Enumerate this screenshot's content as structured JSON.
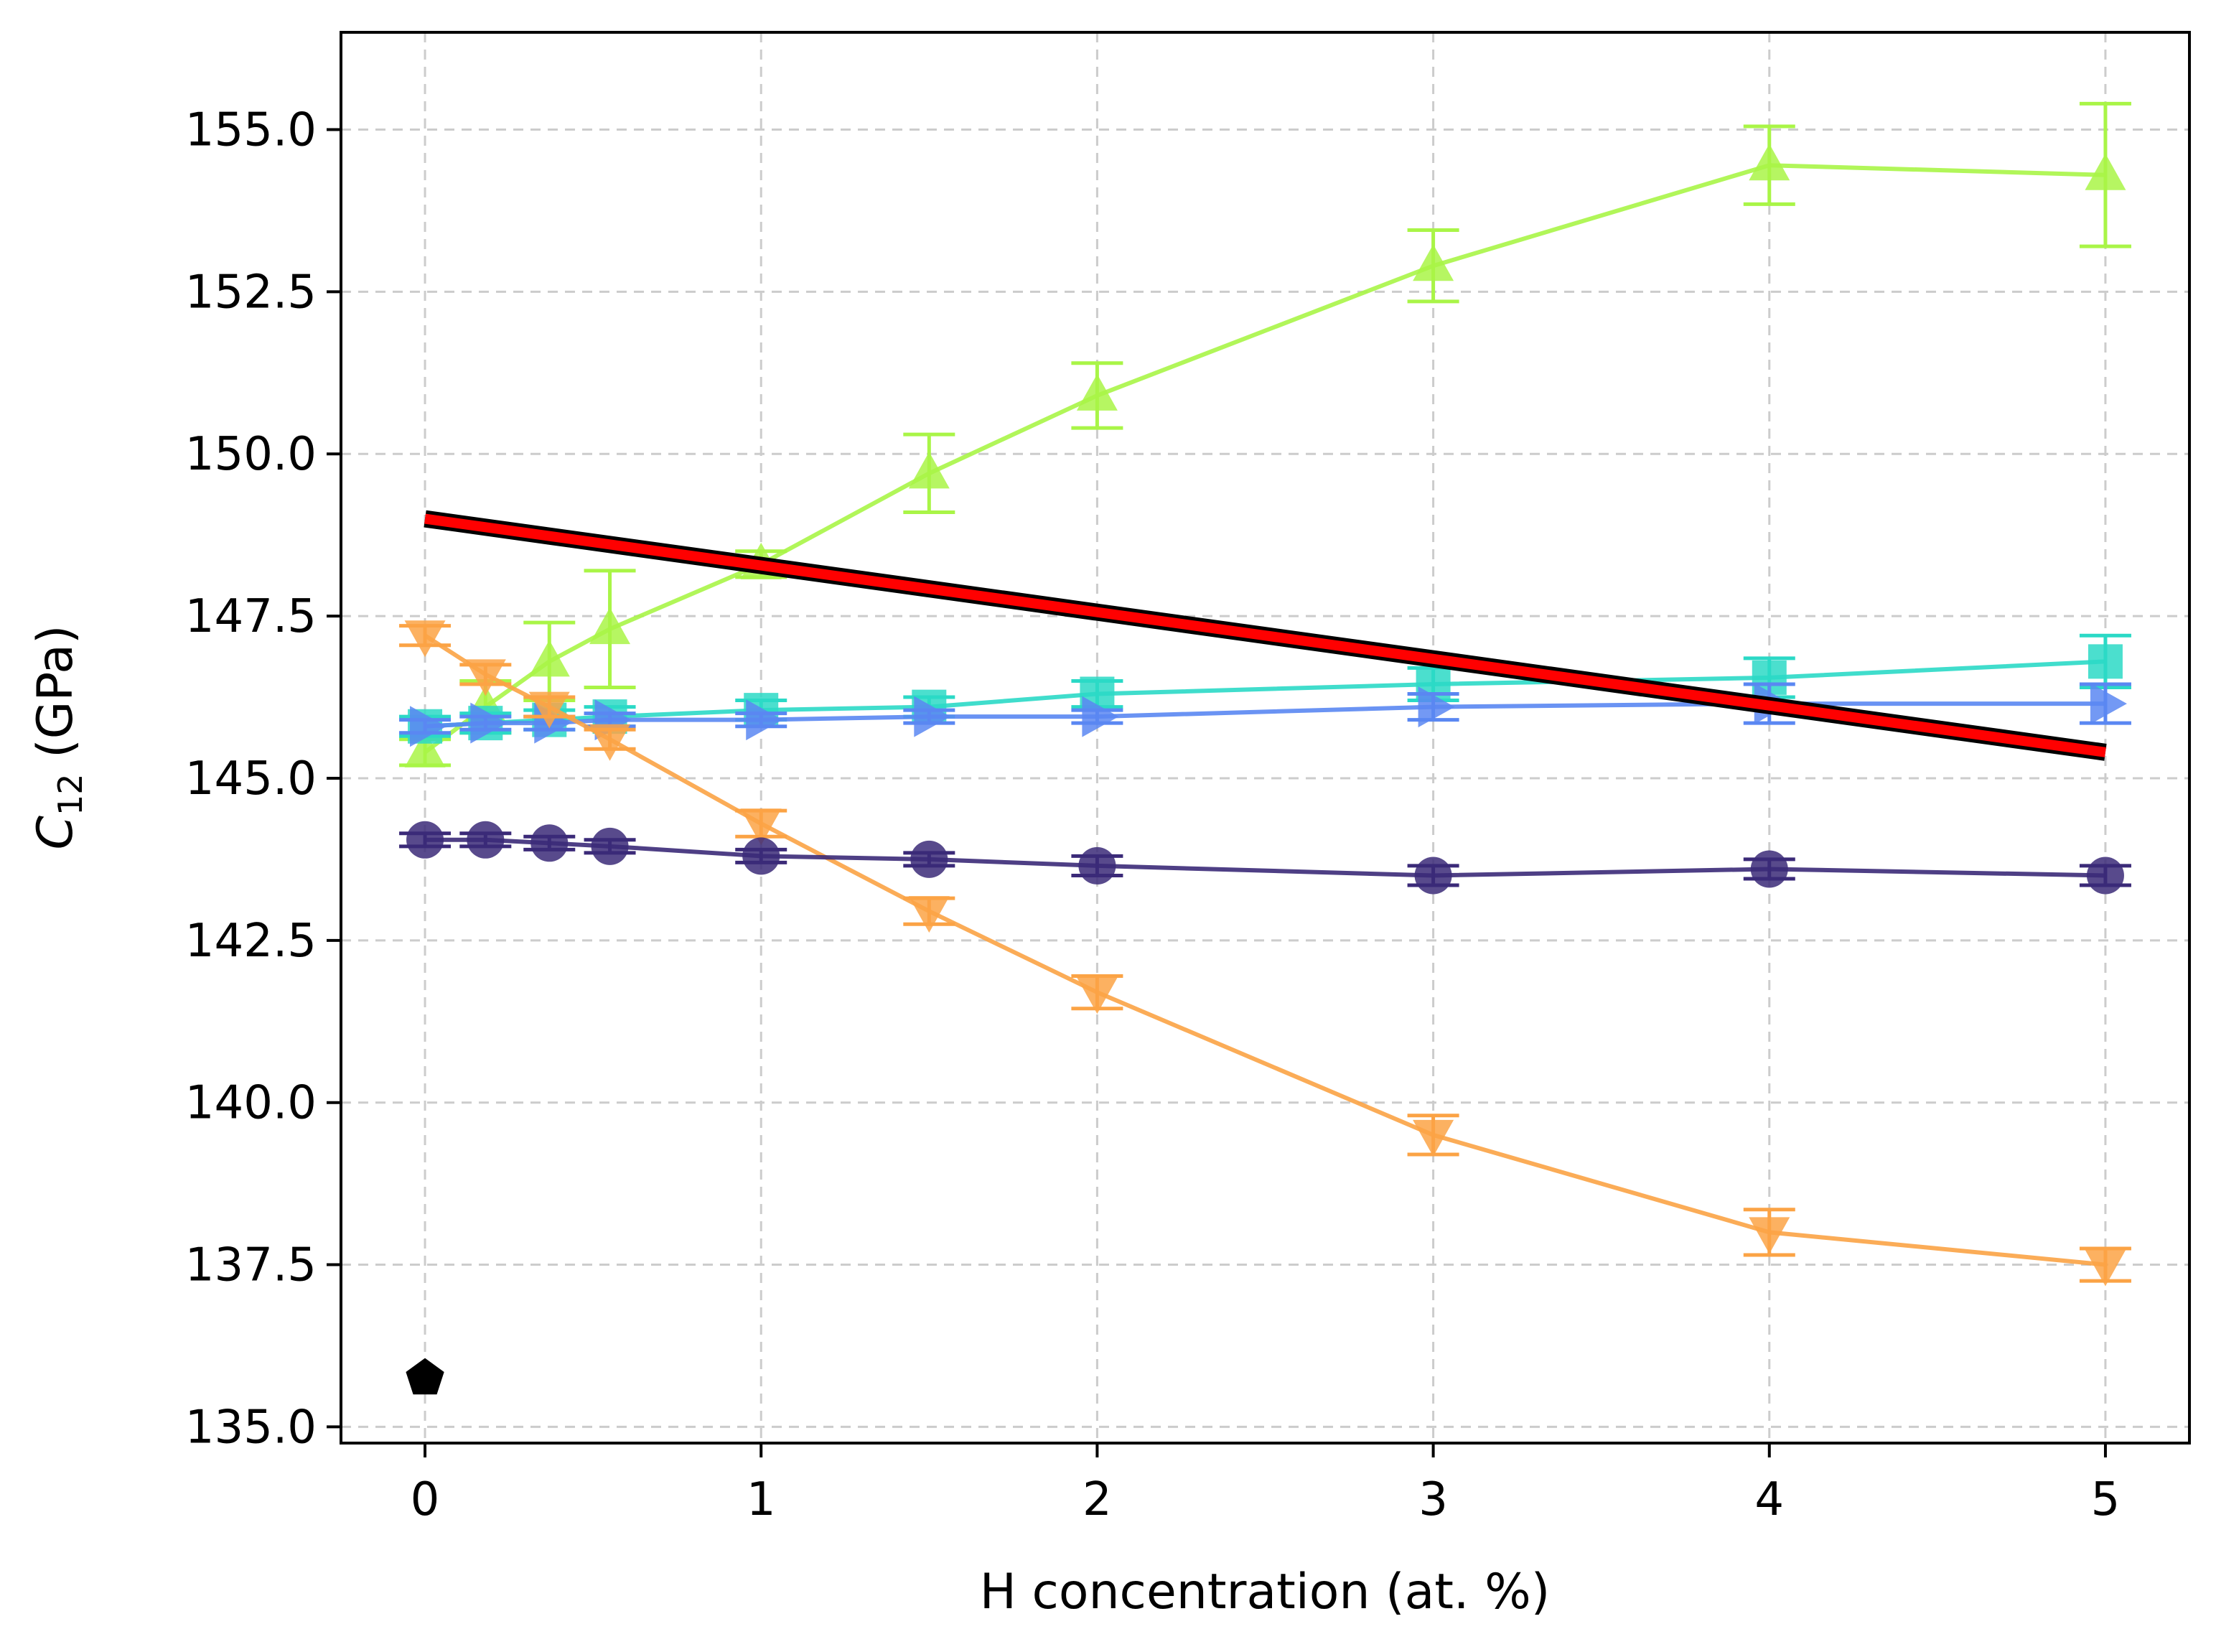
{
  "chart_data": {
    "type": "line",
    "title": "",
    "xlabel": "H concentration (at. %)",
    "ylabel": {
      "main": "C",
      "sub": "12",
      "unit": " (GPa)"
    },
    "xlim": [
      -0.25,
      5.25
    ],
    "ylim": [
      134.75,
      156.5
    ],
    "xticks": [
      0,
      1,
      2,
      3,
      4,
      5
    ],
    "xtick_labels": [
      "0",
      "1",
      "2",
      "3",
      "4",
      "5"
    ],
    "yticks": [
      135.0,
      137.5,
      140.0,
      142.5,
      145.0,
      147.5,
      150.0,
      152.5,
      155.0
    ],
    "ytick_labels": [
      "135.0",
      "137.5",
      "140.0",
      "142.5",
      "145.0",
      "147.5",
      "150.0",
      "152.5",
      "155.0"
    ],
    "grid": true,
    "legend": "none",
    "series": [
      {
        "name": "series-triangle-up",
        "color": "#a9f547",
        "marker": "triangle-up",
        "x": [
          0,
          0.18,
          0.37,
          0.55,
          1,
          1.5,
          2,
          3,
          4,
          5
        ],
        "y": [
          145.4,
          146.1,
          146.8,
          147.3,
          148.3,
          149.7,
          150.9,
          152.9,
          154.45,
          154.3
        ],
        "err": [
          0.2,
          0.4,
          0.6,
          0.9,
          0.2,
          0.6,
          0.5,
          0.55,
          0.6,
          1.1
        ]
      },
      {
        "name": "series-square",
        "color": "#2bd9c6",
        "marker": "square",
        "x": [
          0,
          0.18,
          0.37,
          0.55,
          1,
          1.5,
          2,
          3,
          4,
          5
        ],
        "y": [
          145.8,
          145.85,
          145.9,
          145.95,
          146.05,
          146.1,
          146.3,
          146.45,
          146.55,
          146.8
        ],
        "err": [
          0.15,
          0.15,
          0.15,
          0.15,
          0.15,
          0.15,
          0.2,
          0.25,
          0.3,
          0.4
        ]
      },
      {
        "name": "series-triangle-right",
        "color": "#5a87f2",
        "marker": "triangle-right",
        "x": [
          0,
          0.18,
          0.37,
          0.55,
          1,
          1.5,
          2,
          3,
          4,
          5
        ],
        "y": [
          145.8,
          145.85,
          145.85,
          145.9,
          145.9,
          145.95,
          145.95,
          146.1,
          146.15,
          146.15
        ],
        "err": [
          0.1,
          0.1,
          0.1,
          0.1,
          0.1,
          0.1,
          0.1,
          0.2,
          0.3,
          0.3
        ]
      },
      {
        "name": "series-triangle-down",
        "color": "#fba345",
        "marker": "triangle-down",
        "x": [
          0,
          0.18,
          0.37,
          0.55,
          1,
          1.5,
          2,
          3,
          4,
          5
        ],
        "y": [
          147.2,
          146.6,
          146.1,
          145.6,
          144.3,
          142.95,
          141.7,
          139.5,
          138.0,
          137.5
        ],
        "err": [
          0.15,
          0.15,
          0.15,
          0.15,
          0.2,
          0.2,
          0.25,
          0.3,
          0.35,
          0.25
        ]
      },
      {
        "name": "series-circle",
        "color": "#3b2a78",
        "marker": "circle",
        "x": [
          0,
          0.18,
          0.37,
          0.55,
          1,
          1.5,
          2,
          3,
          4,
          5
        ],
        "y": [
          144.05,
          144.05,
          144.0,
          143.95,
          143.8,
          143.75,
          143.65,
          143.5,
          143.6,
          143.5
        ],
        "err": [
          0.1,
          0.1,
          0.1,
          0.1,
          0.1,
          0.1,
          0.15,
          0.15,
          0.15,
          0.15
        ]
      }
    ],
    "trend_line": {
      "name": "linear-fit",
      "color": "#ff0000",
      "outline": "#000000",
      "x": [
        0,
        5
      ],
      "y": [
        149.0,
        145.4
      ]
    },
    "reference_point": {
      "name": "reference-pentagon",
      "color": "#000000",
      "marker": "pentagon",
      "x": 0,
      "y": 135.75
    }
  }
}
